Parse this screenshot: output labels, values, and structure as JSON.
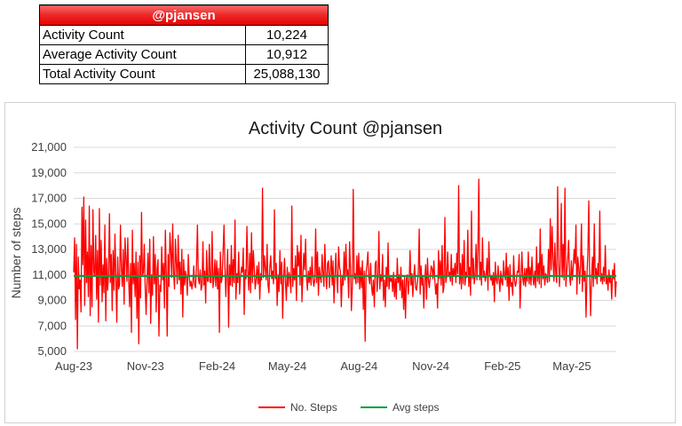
{
  "summary": {
    "header": "@pjansen",
    "rows": [
      {
        "label": "Activity Count",
        "value": "10,224"
      },
      {
        "label": "Average Activity Count",
        "value": "10,912"
      },
      {
        "label": "Total Activity Count",
        "value": "25,088,130"
      }
    ]
  },
  "chart_data": {
    "type": "line",
    "title": "Activity Count @pjansen",
    "xlabel": "",
    "ylabel": "Number of steps",
    "ylim": [
      5000,
      21000
    ],
    "yticks": [
      5000,
      7000,
      9000,
      11000,
      13000,
      15000,
      17000,
      19000,
      21000
    ],
    "ytick_labels": [
      "5,000",
      "7,000",
      "9,000",
      "11,000",
      "13,000",
      "15,000",
      "17,000",
      "19,000",
      "21,000"
    ],
    "xtick_labels": [
      "Aug-23",
      "Nov-23",
      "Feb-24",
      "May-24",
      "Aug-24",
      "Nov-24",
      "Feb-25",
      "May-25"
    ],
    "x_start": "2023-08-01",
    "x_end": "2025-06-27",
    "grid": true,
    "legend": "bottom",
    "colors": {
      "steps": "#ff0000",
      "avg": "#00a040"
    },
    "series": [
      {
        "name": "No. Steps",
        "values": [
          11200,
          13900,
          7500,
          13400,
          5200,
          12400,
          9900,
          10600,
          8100,
          16300,
          11800,
          17100,
          8600,
          15300,
          10400,
          12800,
          9300,
          16400,
          7800,
          13300,
          8500,
          16100,
          11200,
          10900,
          14100,
          9100,
          12900,
          7300,
          16200,
          10200,
          13700,
          8900,
          11800,
          9600,
          14900,
          7400,
          12300,
          9800,
          11100,
          15800,
          10400,
          12600,
          8200,
          12900,
          9800,
          14200,
          10800,
          7300,
          12400,
          9900,
          10200,
          14900,
          11600,
          10100,
          13000,
          8700,
          13900,
          12400,
          10500,
          13900,
          10600,
          8500,
          11900,
          6500,
          14500,
          10300,
          11900,
          9300,
          12800,
          7600,
          12000,
          5600,
          12500,
          9200,
          15900,
          10900,
          11200,
          13400,
          10000,
          7900,
          10600,
          12700,
          9600,
          13800,
          7200,
          11000,
          9400,
          14000,
          10300,
          12600,
          8100,
          11500,
          12200,
          6200,
          10200,
          9700,
          13200,
          10600,
          11900,
          8400,
          14500,
          11100,
          6200,
          12600,
          10100,
          14300,
          12900,
          10800,
          15000,
          11200,
          9900,
          13800,
          11900,
          10300,
          14100,
          10600,
          12000,
          9500,
          13000,
          7700,
          12200,
          10200,
          11300,
          10800,
          9400,
          12600,
          10900,
          10100,
          10500,
          9900,
          10400,
          11700,
          10200,
          10000,
          11800,
          14900,
          10700,
          10300,
          11400,
          9800,
          10200,
          13600,
          10200,
          11300,
          8800,
          12900,
          10500,
          10500,
          13400,
          10400,
          10400,
          14400,
          10000,
          10700,
          12200,
          10100,
          12100,
          9900,
          11500,
          6500,
          12800,
          10400,
          10800,
          12900,
          14900,
          11600,
          9300,
          11300,
          13000,
          6900,
          11800,
          10200,
          13300,
          10100,
          12200,
          10400,
          15300,
          9100,
          11100,
          10400,
          12800,
          9500,
          10800,
          11600,
          11200,
          13100,
          7900,
          11400,
          10700,
          14800,
          11300,
          9800,
          12700,
          9600,
          14300,
          10400,
          12900,
          11500,
          9900,
          10600,
          11700,
          10300,
          12000,
          9100,
          11100,
          10600,
          17800,
          10800,
          12500,
          11500,
          10600,
          13400,
          10200,
          9600,
          11700,
          12500,
          10700,
          11300,
          10300,
          16100,
          10700,
          11900,
          8600,
          11000,
          9700,
          12900,
          10300,
          12000,
          7600,
          10800,
          12300,
          10500,
          9000,
          11600,
          10100,
          11200,
          10800,
          9600,
          16400,
          10100,
          11500,
          10600,
          12500,
          9000,
          13300,
          11700,
          12800,
          10200,
          14100,
          8900,
          10900,
          12700,
          11400,
          13800,
          10800,
          9800,
          11300,
          10400,
          11600,
          10200,
          12400,
          10800,
          10100,
          10600,
          14600,
          10400,
          12800,
          9400,
          11600,
          10800,
          10400,
          12600,
          11200,
          10100,
          13400,
          11100,
          9900,
          11900,
          12100,
          10000,
          11200,
          12500,
          10200,
          12100,
          8800,
          10900,
          12700,
          10800,
          9600,
          13200,
          11600,
          11300,
          8500,
          10900,
          10200,
          12800,
          10600,
          13400,
          10900,
          11400,
          9200,
          13600,
          11500,
          8200,
          10100,
          17700,
          10700,
          11100,
          10300,
          12500,
          10400,
          12700,
          9900,
          11600,
          10000,
          12100,
          8300,
          11300,
          5800,
          11200,
          11800,
          12800,
          10800,
          10300,
          11900,
          10100,
          9400,
          10600,
          8500,
          11900,
          12100,
          9700,
          10800,
          14400,
          9900,
          11000,
          10500,
          12600,
          9000,
          10600,
          8500,
          11600,
          10100,
          13500,
          9900,
          10800,
          10500,
          10800,
          9700,
          11200,
          9300,
          10700,
          9100,
          12300,
          10400,
          11000,
          9800,
          11600,
          9200,
          10600,
          8300,
          10900,
          7600,
          10700,
          11000,
          9500,
          10500,
          12900,
          10200,
          11100,
          9300,
          10900,
          11800,
          10000,
          9800,
          10400,
          11200,
          14600,
          9500,
          11700,
          10200,
          10800,
          8400,
          10600,
          11800,
          9100,
          12300,
          10600,
          10000,
          10900,
          11700,
          11500,
          10700,
          12100,
          10600,
          9500,
          10300,
          8400,
          12900,
          10700,
          12100,
          10200,
          13300,
          9600,
          10100,
          15500,
          10400,
          10900,
          12800,
          11000,
          11200,
          10500,
          12600,
          10200,
          11500,
          10900,
          11900,
          10400,
          12700,
          11100,
          18000,
          10300,
          11900,
          9900,
          12600,
          10300,
          13700,
          10200,
          11200,
          10800,
          14500,
          10100,
          11600,
          9400,
          16000,
          10700,
          12300,
          10300,
          10900,
          13400,
          10600,
          12900,
          18500,
          10600,
          12000,
          10200,
          13900,
          10800,
          11300,
          10500,
          10900,
          12300,
          9800,
          13600,
          11100,
          10600,
          10900,
          10200,
          11200,
          8900,
          12000,
          10600,
          10300,
          11700,
          10700,
          9700,
          11300,
          10400,
          10200,
          12100,
          11000,
          10600,
          12700,
          10100,
          11600,
          9000,
          11800,
          10100,
          10400,
          9400,
          12500,
          10600,
          10100,
          10500,
          11300,
          11200,
          12600,
          8400,
          10500,
          12800,
          10700,
          10200,
          11500,
          10100,
          11500,
          10500,
          12800,
          10300,
          11600,
          10200,
          12400,
          10800,
          10200,
          11300,
          10000,
          13200,
          10500,
          11900,
          10300,
          14600,
          10000,
          12600,
          10700,
          11700,
          10200,
          11100,
          10900,
          10400,
          13000,
          10500,
          15400,
          11400,
          14800,
          12200,
          10500,
          13500,
          11100,
          10400,
          17900,
          12400,
          10100,
          11700,
          16600,
          10800,
          13400,
          10600,
          17800,
          10100,
          11200,
          12300,
          13700,
          10900,
          10200,
          12100,
          10600,
          11600,
          13000,
          11900,
          14900,
          9500,
          12400,
          11600,
          10300,
          11800,
          15000,
          9700,
          12500,
          10500,
          11300,
          7700,
          10900,
          12800,
          16800,
          10600,
          7800,
          10700,
          12400,
          10100,
          15000,
          10700,
          11500,
          10300,
          11900,
          10900,
          16000,
          10500,
          11100,
          10300,
          11600,
          10500,
          13300,
          10300,
          10900,
          9800,
          11400,
          10400,
          10900,
          9100,
          11400,
          10700,
          11900,
          9300,
          10500
        ]
      },
      {
        "name": "Avg steps",
        "values": [
          10912
        ]
      }
    ]
  }
}
